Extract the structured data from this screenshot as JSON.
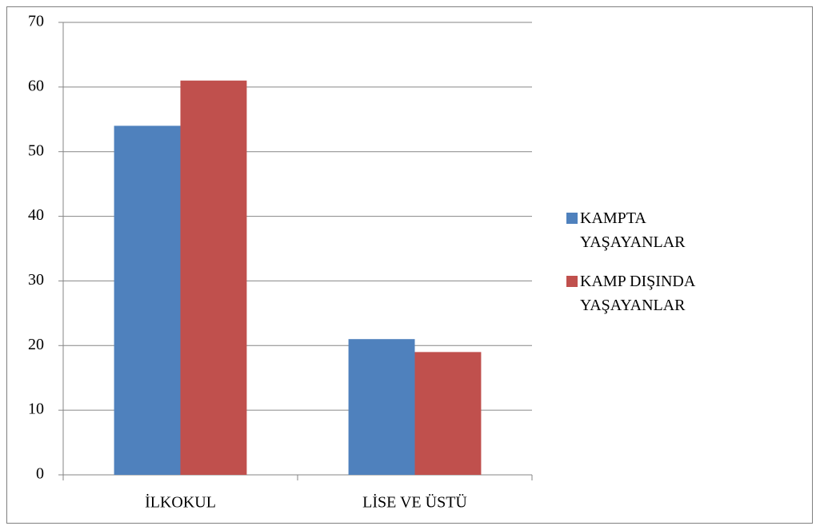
{
  "chart_data": {
    "type": "bar",
    "categories": [
      "İLKOKUL",
      "LİSE VE ÜSTÜ"
    ],
    "series": [
      {
        "name": "KAMPTA YAŞAYANLAR",
        "color": "#4f81bd",
        "values": [
          54,
          21
        ]
      },
      {
        "name": "KAMP DIŞINDA YAŞAYANLAR",
        "color": "#c0504d",
        "values": [
          61,
          19
        ]
      }
    ],
    "ylim": [
      0,
      70
    ],
    "yticks": [
      0,
      10,
      20,
      30,
      40,
      50,
      60,
      70
    ],
    "grid": true,
    "legend": "right"
  }
}
